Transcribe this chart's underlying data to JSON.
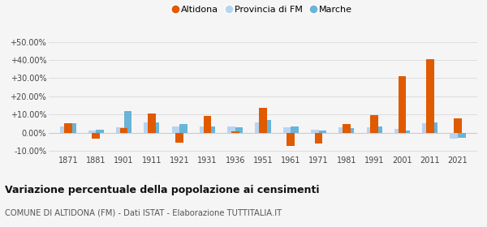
{
  "years": [
    1871,
    1881,
    1901,
    1911,
    1921,
    1931,
    1936,
    1951,
    1961,
    1971,
    1981,
    1991,
    2001,
    2011,
    2021
  ],
  "altidona": [
    5.0,
    -3.5,
    2.5,
    10.5,
    -5.5,
    9.0,
    0.5,
    13.5,
    -7.5,
    -6.0,
    4.5,
    9.5,
    31.0,
    40.5,
    8.0
  ],
  "provincia_fm": [
    3.5,
    1.0,
    3.0,
    5.5,
    3.5,
    3.5,
    3.5,
    5.5,
    3.0,
    1.5,
    3.0,
    3.0,
    2.0,
    5.0,
    -3.5
  ],
  "marche": [
    5.0,
    1.5,
    12.0,
    5.5,
    4.5,
    3.5,
    3.0,
    7.0,
    3.5,
    1.0,
    2.5,
    3.5,
    1.0,
    5.5,
    -3.0
  ],
  "color_altidona": "#e05a00",
  "color_provincia": "#b8d4f0",
  "color_marche": "#6ab4d8",
  "background_color": "#f5f5f5",
  "grid_color": "#dddddd",
  "ylim": [
    -12,
    53
  ],
  "yticks": [
    -10,
    0,
    10,
    20,
    30,
    40,
    50
  ],
  "title": "Variazione percentuale della popolazione ai censimenti",
  "subtitle": "COMUNE DI ALTIDONA (FM) - Dati ISTAT - Elaborazione TUTTITALIA.IT",
  "legend_labels": [
    "Altidona",
    "Provincia di FM",
    "Marche"
  ],
  "bar_width": 0.28
}
